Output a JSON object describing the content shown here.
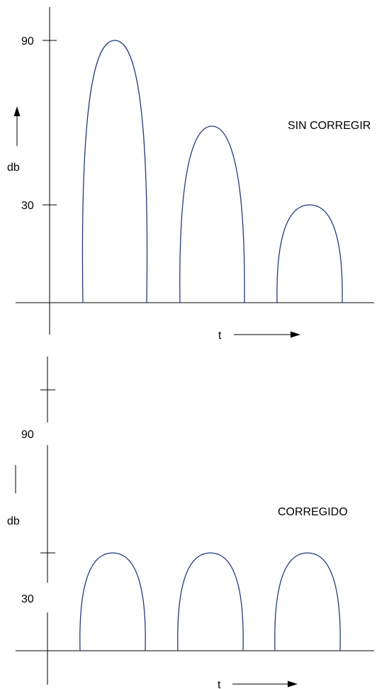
{
  "top_panel": {
    "tick_high": "90",
    "tick_low": "30",
    "axis_label": "db",
    "time_label": "t",
    "caption": "SIN CORREGIR",
    "peaks": [
      90,
      60,
      30
    ]
  },
  "bottom_panel": {
    "tick_high": "90",
    "tick_low": "30",
    "axis_label": "db",
    "time_label": "t",
    "caption": "CORREGIDO",
    "peaks": [
      45,
      45,
      45
    ]
  },
  "colors": {
    "curve": "#1f3a7a",
    "axis": "#000000"
  }
}
